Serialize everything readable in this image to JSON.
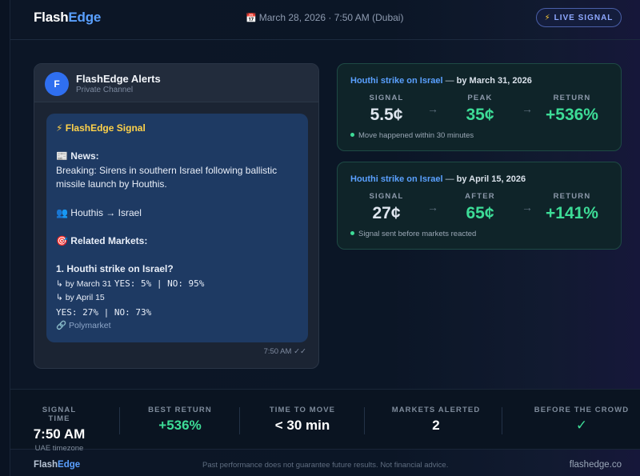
{
  "header": {
    "logo_part1": "Flash",
    "logo_part2": "Edge",
    "calendar_glyph": "📅",
    "datetime": "March 28, 2026 · 7:50 AM (Dubai)",
    "live_glyph": "⚡",
    "live_label": "LIVE SIGNAL"
  },
  "telegram": {
    "avatar_letter": "F",
    "channel_name": "FlashEdge Alerts",
    "channel_type": "Private Channel",
    "message": {
      "signal_title": "⚡ FlashEdge Signal",
      "news_label": "📰 News:",
      "news_line1": "Breaking: Sirens in southern Israel following ballistic",
      "news_line2": "missile launch by Houthis.",
      "parties": "👥 Houthis → Israel",
      "related_label": "🎯 Related Markets:",
      "market1_title": "1. Houthi strike on Israel?",
      "market1_sub1_label": "↳ by March 31",
      "market1_sub1_odds": "YES: 5% | NO: 95%",
      "market1_sub2_label": "↳ by April 15",
      "market1_sub2_odds": "YES: 27% | NO: 73%",
      "source": "🔗 Polymarket"
    },
    "timestamp": "7:50 AM ✓✓"
  },
  "cards": [
    {
      "market": "Houthi strike on Israel",
      "sep": " — ",
      "by": "by March 31, 2026",
      "col1_label": "SIGNAL",
      "col1_value": "5.5¢",
      "col2_label": "PEAK",
      "col2_value": "35¢",
      "col3_label": "RETURN",
      "col3_value": "+536%",
      "arrow": "→",
      "note": "Move happened within 30 minutes"
    },
    {
      "market": "Houthi strike on Israel",
      "sep": " — ",
      "by": "by April 15, 2026",
      "col1_label": "SIGNAL",
      "col1_value": "27¢",
      "col2_label": "AFTER",
      "col2_value": "65¢",
      "col3_label": "RETURN",
      "col3_value": "+141%",
      "arrow": "→",
      "note": "Signal sent before markets reacted"
    }
  ],
  "stats": {
    "signal_time_label": "SIGNAL TIME",
    "signal_time_value": "7:50 AM",
    "signal_time_sub": "UAE timezone",
    "best_return_label": "BEST RETURN",
    "best_return_value": "+536%",
    "time_to_move_label": "TIME TO MOVE",
    "time_to_move_value": "< 30 min",
    "markets_alerted_label": "MARKETS ALERTED",
    "markets_alerted_value": "2",
    "before_crowd_label": "BEFORE THE CROWD",
    "before_crowd_value": "✓"
  },
  "footer": {
    "logo_part1": "Flash",
    "logo_part2": "Edge",
    "disclaimer": "Past performance does not guarantee future results. Not financial advice.",
    "url": "flashedge.co"
  },
  "colors": {
    "accent_blue": "#5aa0ff",
    "positive_green": "#3ddc97",
    "signal_yellow": "#ffd24a",
    "bubble_bg": "#1e3a63"
  }
}
